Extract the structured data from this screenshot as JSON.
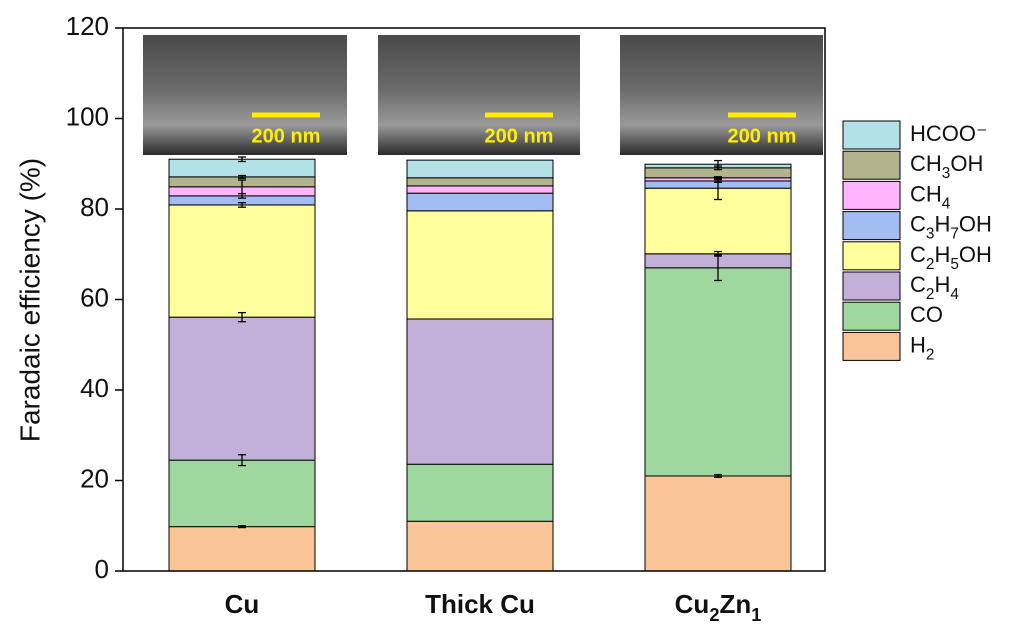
{
  "chart_data": {
    "type": "stacked-bar",
    "ylabel": "Faradaic efficiency (%)",
    "categories": [
      "Cu",
      "Thick Cu",
      "Cu2Zn1"
    ],
    "series": [
      {
        "name": "H2",
        "color": "#f9c596",
        "values": [
          9.8,
          11.0,
          21.0
        ],
        "errors": [
          0.2,
          null,
          0.3
        ]
      },
      {
        "name": "CO",
        "color": "#9fd89f",
        "values": [
          14.7,
          12.6,
          46.0
        ],
        "errors": [
          1.2,
          null,
          2.8
        ]
      },
      {
        "name": "C2H4",
        "color": "#c2b0d8",
        "values": [
          31.6,
          32.1,
          3.1
        ],
        "errors": [
          1.0,
          null,
          0.5
        ]
      },
      {
        "name": "C2H5OH",
        "color": "#ffff9c",
        "values": [
          24.8,
          23.9,
          14.5
        ],
        "errors": [
          0.5,
          null,
          2.5
        ]
      },
      {
        "name": "C3H7OH",
        "color": "#a3bcf2",
        "values": [
          2.0,
          3.9,
          1.6
        ],
        "errors": [
          0.5,
          null,
          0.3
        ]
      },
      {
        "name": "CH4",
        "color": "#ffb5fb",
        "values": [
          2.0,
          1.6,
          0.7
        ],
        "errors": [
          1.5,
          null,
          0.2
        ]
      },
      {
        "name": "CH3OH",
        "color": "#b3b38e",
        "values": [
          2.2,
          1.8,
          2.2
        ],
        "errors": [
          0.3,
          null,
          0.4
        ]
      },
      {
        "name": "HCOO⁻",
        "color": "#b3e1e8",
        "values": [
          3.9,
          3.9,
          0.8
        ],
        "errors": [
          0.5,
          null,
          0.8
        ]
      }
    ],
    "annotations": [
      "200 nm",
      "200 nm",
      "200 nm"
    ],
    "ylim": [
      0,
      120
    ],
    "yticks": [
      0,
      20,
      40,
      60,
      80,
      100,
      120
    ]
  }
}
